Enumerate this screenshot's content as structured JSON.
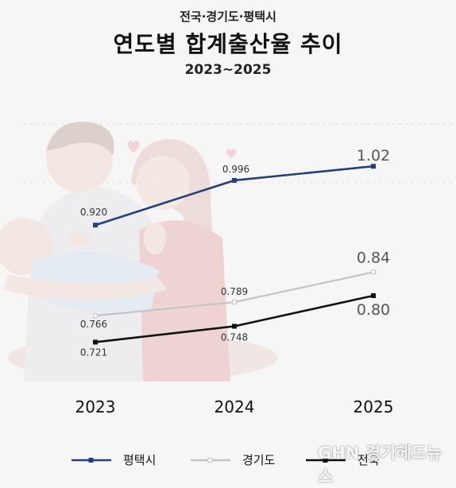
{
  "header": {
    "subtitle": "전국·경기도·평택시",
    "title": "연도별 합계출산율 추이",
    "period": "2023~2025"
  },
  "chart_data": {
    "type": "line",
    "x": [
      "2023",
      "2024",
      "2025"
    ],
    "ylim": [
      0.6,
      1.1
    ],
    "grid": false,
    "legend_position": "bottom",
    "series": [
      {
        "name": "평택시",
        "values": [
          0.92,
          0.996,
          1.02
        ],
        "labels": [
          "0.920",
          "0.996",
          "1.02"
        ],
        "color": "#233f80"
      },
      {
        "name": "경기도",
        "values": [
          0.766,
          0.789,
          0.84
        ],
        "labels": [
          "0.766",
          "0.789",
          "0.84"
        ],
        "color": "#c4c4c4"
      },
      {
        "name": "전국",
        "values": [
          0.721,
          0.748,
          0.8
        ],
        "labels": [
          "0.721",
          "0.748",
          "0.80"
        ],
        "color": "#111111"
      }
    ]
  },
  "watermark": "GHN 경기헤드뉴스"
}
